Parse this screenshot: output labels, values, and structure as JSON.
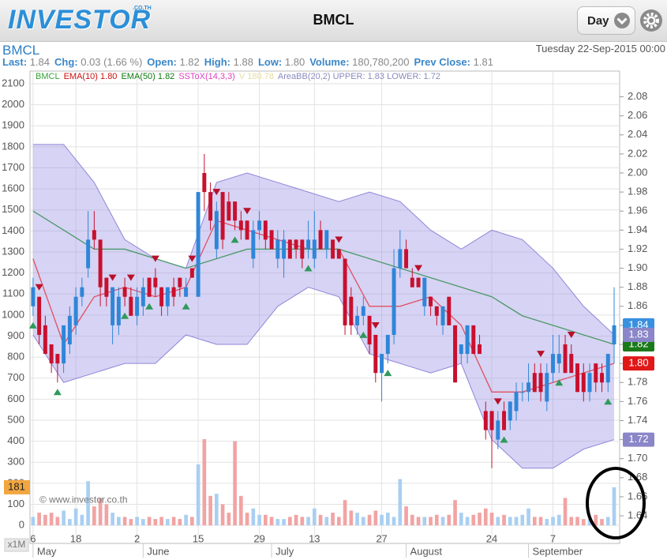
{
  "header": {
    "logo": "INVESTOR",
    "logo_suffix": ".CO.TH",
    "title": "BMCL",
    "period": "Day"
  },
  "info": {
    "symbol": "BMCL",
    "datetime": "Tuesday 22-Sep-2015 00:00",
    "quote": [
      {
        "label": "Last:",
        "value": "1.84"
      },
      {
        "label": "Chg:",
        "value": "0.03 (1.66 %)"
      },
      {
        "label": "Open:",
        "value": "1.82"
      },
      {
        "label": "High:",
        "value": "1.88"
      },
      {
        "label": "Low:",
        "value": "1.80"
      },
      {
        "label": "Volume:",
        "value": "180,780,200"
      },
      {
        "label": "Prev Close:",
        "value": "1.81"
      }
    ]
  },
  "chart_data": {
    "type": "candlestick",
    "grid": true,
    "legend": [
      {
        "text": "BMCL",
        "color": "#3aa03a"
      },
      {
        "text": "EMA(10) 1.80",
        "color": "#d01010"
      },
      {
        "text": "EMA(50) 1.82",
        "color": "#107a10"
      },
      {
        "text": "SSToX(14,3,3)",
        "color": "#e040c0"
      },
      {
        "text": "V 180.78",
        "color": "#e6dca0"
      },
      {
        "text": "AreaBB(20,2) UPPER: 1.83 LOWER: 1.72",
        "color": "#8a8ac0"
      }
    ],
    "watermark": "© www.investor.co.th",
    "volume_unit": "x1M",
    "xlim": [
      -0.5,
      95.9
    ],
    "xticks": [
      {
        "value": 0,
        "label": "6"
      },
      {
        "value": 7,
        "label": "18"
      },
      {
        "value": 17,
        "label": "2"
      },
      {
        "value": 27,
        "label": "15"
      },
      {
        "value": 37,
        "label": "29"
      },
      {
        "value": 46,
        "label": "13"
      },
      {
        "value": 57,
        "label": "27"
      },
      {
        "value": 75,
        "label": "24"
      },
      {
        "value": 85,
        "label": "7"
      }
    ],
    "month_labels": [
      {
        "value": 0,
        "label": "May"
      },
      {
        "value": 18,
        "label": "June"
      },
      {
        "value": 39,
        "label": "July"
      },
      {
        "value": 61,
        "label": "August"
      },
      {
        "value": 81,
        "label": "September"
      }
    ],
    "ylim": [
      -86,
      2160
    ],
    "yticks": [
      0,
      100,
      200,
      300,
      400,
      500,
      600,
      700,
      800,
      900,
      1000,
      1100,
      1200,
      1300,
      1400,
      1500,
      1600,
      1700,
      1800,
      1900,
      2000,
      2100
    ],
    "y2lim": [
      1.611,
      2.107
    ],
    "y2ticks": [
      2.08,
      2.06,
      2.04,
      2.02,
      {
        "value": 2,
        "label": "2.00"
      },
      1.98,
      1.96,
      1.94,
      1.92,
      {
        "value": 1.9,
        "label": "1.90"
      },
      1.88,
      1.86,
      1.84,
      1.82,
      {
        "value": 1.8,
        "label": "1.80"
      },
      1.78,
      1.76,
      1.74,
      1.72,
      {
        "value": 1.7,
        "label": "1.70"
      },
      1.68,
      1.66,
      1.64
    ],
    "up_color": "#2f86d8",
    "down_color": "#c8102e",
    "ohlc": [
      [
        1.86,
        1.89,
        1.85,
        1.88
      ],
      [
        1.87,
        1.87,
        1.82,
        1.83
      ],
      [
        1.84,
        1.85,
        1.81,
        1.81
      ],
      [
        1.82,
        1.82,
        1.79,
        1.8
      ],
      [
        1.81,
        1.81,
        1.78,
        1.8
      ],
      [
        1.8,
        1.84,
        1.79,
        1.84
      ],
      [
        1.82,
        1.86,
        1.81,
        1.85
      ],
      [
        1.84,
        1.88,
        1.83,
        1.87
      ],
      [
        1.87,
        1.89,
        1.86,
        1.88
      ],
      [
        1.9,
        1.96,
        1.89,
        1.93
      ],
      [
        1.94,
        1.96,
        1.92,
        1.93
      ],
      [
        1.93,
        1.93,
        1.86,
        1.88
      ],
      [
        1.89,
        1.89,
        1.86,
        1.87
      ],
      [
        1.84,
        1.88,
        1.82,
        1.88
      ],
      [
        1.84,
        1.88,
        1.83,
        1.87
      ],
      [
        1.88,
        1.89,
        1.86,
        1.87
      ],
      [
        1.87,
        1.88,
        1.85,
        1.85
      ],
      [
        1.85,
        1.88,
        1.84,
        1.87
      ],
      [
        1.86,
        1.89,
        1.85,
        1.88
      ],
      [
        1.89,
        1.89,
        1.87,
        1.87
      ],
      [
        1.89,
        1.9,
        1.87,
        1.88
      ],
      [
        1.88,
        1.88,
        1.85,
        1.86
      ],
      [
        1.86,
        1.88,
        1.85,
        1.88
      ],
      [
        1.88,
        1.89,
        1.86,
        1.87
      ],
      [
        1.89,
        1.89,
        1.87,
        1.88
      ],
      [
        1.87,
        1.89,
        1.87,
        1.88
      ],
      [
        1.9,
        1.9,
        1.89,
        1.89
      ],
      [
        1.87,
        1.98,
        1.87,
        1.98
      ],
      [
        2,
        2.02,
        1.96,
        1.98
      ],
      [
        1.98,
        1.99,
        1.94,
        1.95
      ],
      [
        1.92,
        1.97,
        1.91,
        1.96
      ],
      [
        1.98,
        1.98,
        1.92,
        1.93
      ],
      [
        1.97,
        1.98,
        1.95,
        1.95
      ],
      [
        1.97,
        1.97,
        1.94,
        1.95
      ],
      [
        1.95,
        1.96,
        1.93,
        1.94
      ],
      [
        1.95,
        1.95,
        1.93,
        1.93
      ],
      [
        1.91,
        1.95,
        1.9,
        1.94
      ],
      [
        1.94,
        1.96,
        1.93,
        1.95
      ],
      [
        1.95,
        1.95,
        1.92,
        1.93
      ],
      [
        1.94,
        1.94,
        1.92,
        1.92
      ],
      [
        1.91,
        1.94,
        1.9,
        1.93
      ],
      [
        1.91,
        1.94,
        1.89,
        1.93
      ],
      [
        1.93,
        1.93,
        1.91,
        1.91
      ],
      [
        1.93,
        1.93,
        1.91,
        1.92
      ],
      [
        1.93,
        1.93,
        1.9,
        1.91
      ],
      [
        1.92,
        1.95,
        1.91,
        1.93
      ],
      [
        1.91,
        1.96,
        1.9,
        1.93
      ],
      [
        1.94,
        1.95,
        1.92,
        1.92
      ],
      [
        1.92,
        1.94,
        1.91,
        1.94
      ],
      [
        1.93,
        1.93,
        1.91,
        1.91
      ],
      [
        1.92,
        1.92,
        1.91,
        1.91
      ],
      [
        1.91,
        1.91,
        1.83,
        1.84
      ],
      [
        1.87,
        1.88,
        1.83,
        1.84
      ],
      [
        1.84,
        1.86,
        1.83,
        1.85
      ],
      [
        1.85,
        1.87,
        1.84,
        1.86
      ],
      [
        1.85,
        1.85,
        1.81,
        1.82
      ],
      [
        1.83,
        1.83,
        1.78,
        1.79
      ],
      [
        1.79,
        1.81,
        1.76,
        1.81
      ],
      [
        1.81,
        1.83,
        1.8,
        1.83
      ],
      [
        1.83,
        1.92,
        1.82,
        1.9
      ],
      [
        1.9,
        1.94,
        1.89,
        1.92
      ],
      [
        1.92,
        1.93,
        1.9,
        1.9
      ],
      [
        1.89,
        1.9,
        1.88,
        1.88
      ],
      [
        1.89,
        1.89,
        1.88,
        1.88
      ],
      [
        1.86,
        1.89,
        1.85,
        1.89
      ],
      [
        1.87,
        1.87,
        1.85,
        1.86
      ],
      [
        1.86,
        1.86,
        1.84,
        1.85
      ],
      [
        1.84,
        1.86,
        1.83,
        1.86
      ],
      [
        1.87,
        1.87,
        1.84,
        1.84
      ],
      [
        1.84,
        1.84,
        1.78,
        1.78
      ],
      [
        1.81,
        1.82,
        1.8,
        1.82
      ],
      [
        1.81,
        1.84,
        1.8,
        1.84
      ],
      [
        1.84,
        1.84,
        1.81,
        1.81
      ],
      [
        1.82,
        1.83,
        1.81,
        1.81
      ],
      [
        1.75,
        1.76,
        1.72,
        1.73
      ],
      [
        1.75,
        1.75,
        1.69,
        1.73
      ],
      [
        1.72,
        1.75,
        1.71,
        1.74
      ],
      [
        1.75,
        1.76,
        1.73,
        1.73
      ],
      [
        1.74,
        1.76,
        1.73,
        1.76
      ],
      [
        1.75,
        1.78,
        1.74,
        1.77
      ],
      [
        1.77,
        1.78,
        1.76,
        1.77
      ],
      [
        1.77,
        1.8,
        1.76,
        1.78
      ],
      [
        1.79,
        1.8,
        1.77,
        1.77
      ],
      [
        1.79,
        1.8,
        1.76,
        1.77
      ],
      [
        1.76,
        1.8,
        1.75,
        1.79
      ],
      [
        1.79,
        1.83,
        1.78,
        1.81
      ],
      [
        1.8,
        1.83,
        1.79,
        1.81
      ],
      [
        1.82,
        1.83,
        1.79,
        1.79
      ],
      [
        1.81,
        1.82,
        1.79,
        1.79
      ],
      [
        1.8,
        1.8,
        1.77,
        1.77
      ],
      [
        1.79,
        1.8,
        1.76,
        1.77
      ],
      [
        1.77,
        1.8,
        1.76,
        1.79
      ],
      [
        1.8,
        1.8,
        1.77,
        1.78
      ],
      [
        1.79,
        1.8,
        1.77,
        1.78
      ],
      [
        1.78,
        1.81,
        1.77,
        1.81
      ],
      [
        1.82,
        1.88,
        1.8,
        1.84
      ]
    ],
    "volume": {
      "up_color": "#a9cff2",
      "down_color": "#f2a3a3",
      "label": {
        "value": 181,
        "label": "181"
      },
      "label_color": "#f2a640",
      "values": [
        40,
        60,
        50,
        60,
        40,
        70,
        30,
        80,
        50,
        210,
        90,
        130,
        100,
        60,
        40,
        40,
        30,
        40,
        30,
        40,
        30,
        40,
        30,
        40,
        30,
        50,
        40,
        290,
        410,
        140,
        150,
        100,
        60,
        400,
        140,
        60,
        80,
        50,
        50,
        40,
        30,
        30,
        40,
        50,
        40,
        40,
        80,
        50,
        40,
        60,
        40,
        120,
        70,
        60,
        40,
        50,
        70,
        50,
        60,
        40,
        220,
        90,
        50,
        40,
        40,
        40,
        50,
        40,
        50,
        120,
        60,
        40,
        50,
        60,
        80,
        60,
        40,
        50,
        40,
        40,
        50,
        80,
        40,
        40,
        30,
        40,
        50,
        130,
        40,
        40,
        30,
        30,
        50,
        30,
        40,
        181
      ]
    },
    "lines": [
      {
        "name": "EMA(10)",
        "color": "#e05060",
        "x": [
          0,
          5,
          10,
          15,
          20,
          25,
          30,
          35,
          40,
          45,
          50,
          55,
          60,
          65,
          70,
          75,
          80,
          85,
          90,
          95
        ],
        "values": [
          1.91,
          1.82,
          1.87,
          1.88,
          1.87,
          1.88,
          1.95,
          1.94,
          1.93,
          1.92,
          1.92,
          1.86,
          1.86,
          1.87,
          1.84,
          1.77,
          1.77,
          1.78,
          1.79,
          1.8
        ]
      },
      {
        "name": "EMA(50)",
        "color": "#4a9a6a",
        "x": [
          0,
          5,
          10,
          15,
          20,
          25,
          30,
          35,
          40,
          45,
          50,
          55,
          60,
          65,
          70,
          75,
          80,
          85,
          90,
          95
        ],
        "values": [
          1.96,
          1.94,
          1.92,
          1.92,
          1.91,
          1.9,
          1.91,
          1.92,
          1.92,
          1.92,
          1.92,
          1.91,
          1.9,
          1.89,
          1.88,
          1.87,
          1.85,
          1.84,
          1.83,
          1.82
        ]
      }
    ],
    "bands": {
      "name": "AreaBB(20,2)",
      "color": "#8f86d8",
      "fill": "rgba(150,140,225,0.38)",
      "x": [
        0,
        5,
        10,
        15,
        20,
        25,
        30,
        35,
        40,
        45,
        50,
        55,
        60,
        65,
        70,
        75,
        80,
        85,
        90,
        95
      ],
      "upper": [
        2.03,
        2.03,
        1.99,
        1.93,
        1.91,
        1.9,
        1.99,
        2,
        1.99,
        1.98,
        1.97,
        1.98,
        1.97,
        1.94,
        1.92,
        1.94,
        1.93,
        1.9,
        1.86,
        1.83
      ],
      "lower": [
        1.83,
        1.78,
        1.79,
        1.8,
        1.8,
        1.83,
        1.82,
        1.82,
        1.86,
        1.88,
        1.87,
        1.81,
        1.8,
        1.79,
        1.8,
        1.72,
        1.69,
        1.69,
        1.71,
        1.72
      ]
    },
    "buy_signals": [
      0,
      4,
      15,
      19,
      25,
      33,
      45,
      54,
      58,
      77,
      86,
      94
    ],
    "buy_color": "#2e9a5a",
    "sell_signals": [
      1,
      13,
      16,
      20,
      26,
      30,
      35,
      50,
      56,
      63,
      76,
      83,
      88
    ],
    "sell_color": "#b8102a",
    "price_badges": [
      {
        "value": 1.84,
        "label": "1.84",
        "color": "#3a90e0"
      },
      {
        "value": 1.82,
        "label": "1.82",
        "color": "#1a7a1a"
      },
      {
        "value": 1.8,
        "label": "1.80",
        "color": "#e01818"
      },
      {
        "value": 1.83,
        "label": "1.83",
        "color": "#8a86c8"
      },
      {
        "value": 1.72,
        "label": "1.72",
        "color": "#8a86c8"
      }
    ]
  }
}
